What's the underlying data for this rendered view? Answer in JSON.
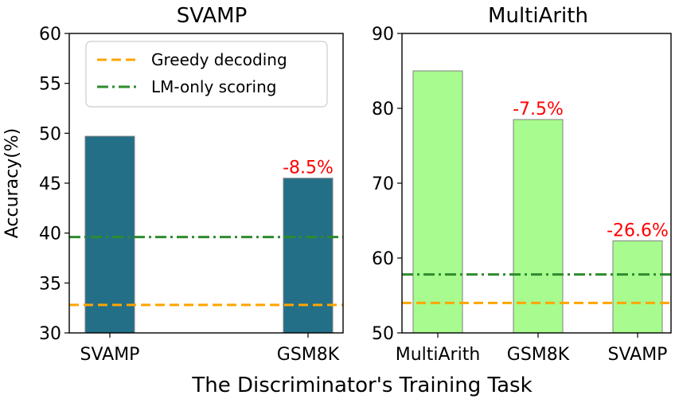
{
  "figure": {
    "xlabel": "The Discriminator's Training Task",
    "ylabel": "Accuracy(%)"
  },
  "legend": {
    "items": [
      {
        "label": "Greedy decoding",
        "color": "#FFA500",
        "style": "dashed"
      },
      {
        "label": "LM-only scoring",
        "color": "#2E8B2E",
        "style": "dashdot"
      }
    ],
    "position": "top-right of left panel"
  },
  "chart_data": [
    {
      "type": "bar",
      "title": "SVAMP",
      "categories": [
        "SVAMP",
        "GSM8K"
      ],
      "values": [
        49.7,
        45.5
      ],
      "data_labels": [
        "",
        "-8.5%"
      ],
      "bar_color": "#236F87",
      "ylim": [
        30,
        60
      ],
      "yticks": [
        30,
        35,
        40,
        45,
        50,
        55,
        60
      ],
      "hlines": {
        "greedy_decoding": 32.8,
        "lm_only_scoring": 39.6
      },
      "ylabel": "Accuracy(%)"
    },
    {
      "type": "bar",
      "title": "MultiArith",
      "categories": [
        "MultiArith",
        "GSM8K",
        "SVAMP"
      ],
      "values": [
        85.0,
        78.5,
        62.3
      ],
      "data_labels": [
        "",
        "-7.5%",
        "-26.6%"
      ],
      "bar_color": "#A8FB8E",
      "ylim": [
        50,
        90
      ],
      "yticks": [
        50,
        60,
        70,
        80,
        90
      ],
      "hlines": {
        "greedy_decoding": 54.0,
        "lm_only_scoring": 57.8
      }
    }
  ]
}
